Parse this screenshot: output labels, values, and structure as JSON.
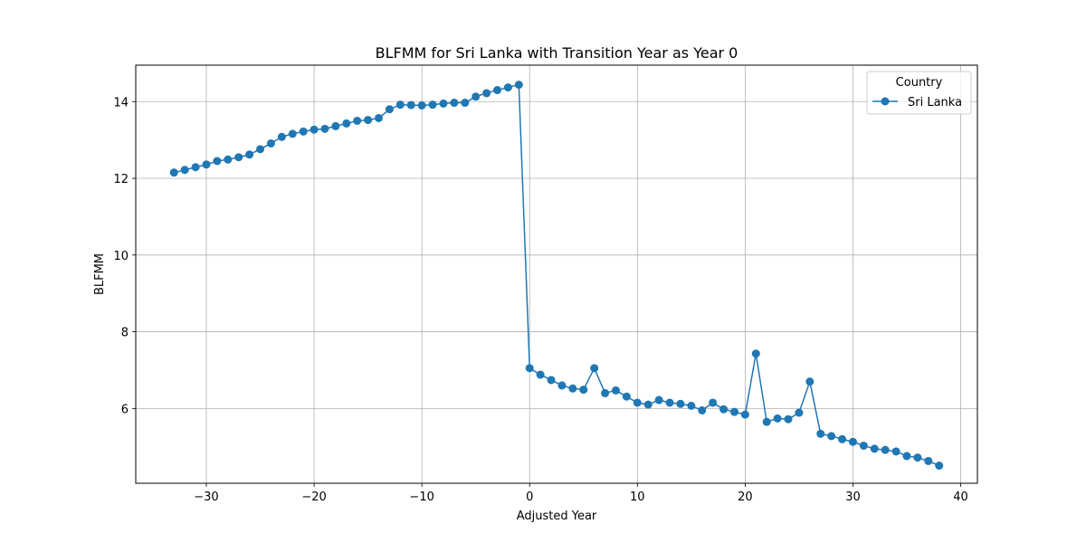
{
  "chart_data": {
    "type": "line",
    "title": "BLFMM for Sri Lanka with Transition Year as Year 0",
    "xlabel": "Adjusted Year",
    "ylabel": "BLFMM",
    "xlim": [
      -36.55,
      41.55
    ],
    "ylim": [
      4.05,
      14.95
    ],
    "xticks": [
      -30,
      -20,
      -10,
      0,
      10,
      20,
      30,
      40
    ],
    "xtick_labels": [
      "−30",
      "−20",
      "−10",
      "0",
      "10",
      "20",
      "30",
      "40"
    ],
    "yticks": [
      6,
      8,
      10,
      12,
      14
    ],
    "ytick_labels": [
      "6",
      "8",
      "10",
      "12",
      "14"
    ],
    "grid": true,
    "legend": {
      "title": "Country",
      "placement": "top-right",
      "entries": [
        "Sri Lanka"
      ]
    },
    "series": [
      {
        "name": "Sri Lanka",
        "color": "#1f77b4",
        "marker": "circle",
        "x": [
          -33,
          -32,
          -31,
          -30,
          -29,
          -28,
          -27,
          -26,
          -25,
          -24,
          -23,
          -22,
          -21,
          -20,
          -19,
          -18,
          -17,
          -16,
          -15,
          -14,
          -13,
          -12,
          -11,
          -10,
          -9,
          -8,
          -7,
          -6,
          -5,
          -4,
          -3,
          -2,
          -1,
          0,
          1,
          2,
          3,
          4,
          5,
          6,
          7,
          8,
          9,
          10,
          11,
          12,
          13,
          14,
          15,
          16,
          17,
          18,
          19,
          20,
          21,
          22,
          23,
          24,
          25,
          26,
          27,
          28,
          29,
          30,
          31,
          32,
          33,
          34,
          35,
          36,
          37,
          38
        ],
        "y": [
          12.15,
          12.22,
          12.29,
          12.36,
          12.45,
          12.49,
          12.55,
          12.62,
          12.76,
          12.91,
          13.08,
          13.16,
          13.22,
          13.27,
          13.29,
          13.36,
          13.43,
          13.5,
          13.52,
          13.57,
          13.8,
          13.92,
          13.91,
          13.9,
          13.92,
          13.95,
          13.97,
          13.97,
          14.13,
          14.22,
          14.3,
          14.37,
          14.44,
          7.05,
          6.88,
          6.74,
          6.6,
          6.52,
          6.49,
          7.05,
          6.4,
          6.47,
          6.31,
          6.15,
          6.1,
          6.22,
          6.15,
          6.12,
          6.07,
          5.95,
          6.15,
          5.98,
          5.91,
          5.84,
          7.43,
          5.65,
          5.74,
          5.72,
          5.89,
          6.7,
          5.34,
          5.28,
          5.2,
          5.13,
          5.03,
          4.95,
          4.92,
          4.88,
          4.76,
          4.72,
          4.63,
          4.51
        ]
      }
    ]
  }
}
